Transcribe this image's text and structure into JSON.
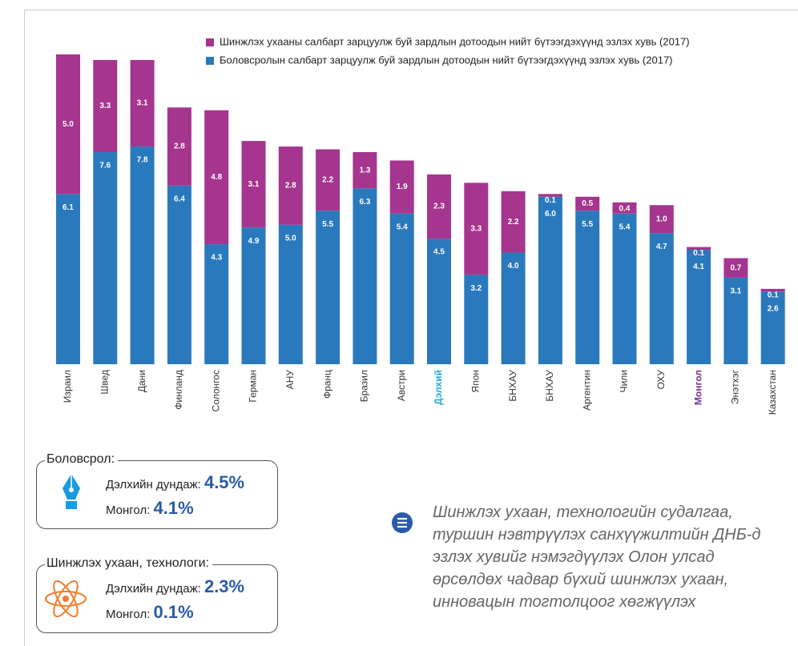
{
  "chart_data": {
    "type": "stacked_bar",
    "categories": [
      "Израил",
      "Швед",
      "Дани",
      "Финланд",
      "Солонгос",
      "Герман",
      "АНУ",
      "Франц",
      "Бразил",
      "Австри",
      "Дэлхий",
      "Япон",
      "БНХАУ",
      "БНХАУ",
      "Аргентин",
      "Чили",
      "ОХУ",
      "Монгол",
      "Энэтхэг",
      "Казахстан"
    ],
    "category_label_colors": [
      "#333333",
      "#333333",
      "#333333",
      "#333333",
      "#333333",
      "#333333",
      "#333333",
      "#333333",
      "#333333",
      "#333333",
      "#1fa9e1",
      "#333333",
      "#333333",
      "#333333",
      "#333333",
      "#333333",
      "#333333",
      "#7a3594",
      "#333333",
      "#333333"
    ],
    "series": [
      {
        "name": "Боловсролын салбарт зарцуулж буй зардлын дотоодын нийт бүтээгдэхүүнд эзлэх хувь (2017)",
        "color": "#2a79bd",
        "values": [
          6.1,
          7.6,
          7.8,
          6.4,
          4.3,
          4.9,
          5.0,
          5.5,
          6.3,
          5.4,
          4.5,
          3.2,
          4.0,
          6.0,
          5.5,
          5.4,
          4.7,
          4.1,
          3.1,
          2.6
        ],
        "value_labels": [
          "6.1",
          "7.6",
          "7.8",
          "6.4",
          "4.3",
          "4.9",
          "5.0",
          "5.5",
          "6.3",
          "5.4",
          "4.5",
          "3.2",
          "4.0",
          "6.0",
          "5.5",
          "5.4",
          "4.7",
          "4.1",
          "3.1",
          "2.6"
        ]
      },
      {
        "name": "Шинжлэх ухааны салбарт зарцуулж буй зардлын дотоодын нийт бүтээгдэхүүнд эзлэх хувь (2017)",
        "color": "#a5358e",
        "values": [
          5.0,
          3.3,
          3.1,
          2.8,
          4.8,
          3.1,
          2.8,
          2.2,
          1.3,
          1.9,
          2.3,
          3.3,
          2.2,
          0.1,
          0.5,
          0.4,
          1.0,
          0.1,
          0.7,
          0.1
        ],
        "value_labels": [
          "5.0",
          "3.3",
          "3.1",
          "2.8",
          "4.8",
          "3.1",
          "2.8",
          "2.2",
          "1.3",
          "1.9",
          "2.3",
          "3.3",
          "2.2",
          "0.1",
          "0.5",
          "0.4",
          "1.0",
          "0.1",
          "0.7",
          "0.1"
        ]
      }
    ]
  },
  "boxes": [
    {
      "title": "Боловсрол:",
      "world_label": "Дэлхийн дундаж:",
      "world_value": "4.5%",
      "mongolia_label": "Монгол:",
      "mongolia_value": "4.1%"
    },
    {
      "title": "Шинжлэх ухаан, технологи:",
      "world_label": "Дэлхийн дундаж:",
      "world_value": "2.3%",
      "mongolia_label": "Монгол:",
      "mongolia_value": "0.1%"
    }
  ],
  "note": [
    "Шинжлэх ухаан, технологийн судалгаа,",
    "туршин нэвтрүүлэх санхүүжилтийн ДНБ-д",
    "эзлэх хувийг нэмэгдүүлэх Олон улсад",
    "өрсөлдөх чадвар бүхий шинжлэх ухаан,",
    "инновацын тогтолцоог хөгжүүлэх"
  ]
}
